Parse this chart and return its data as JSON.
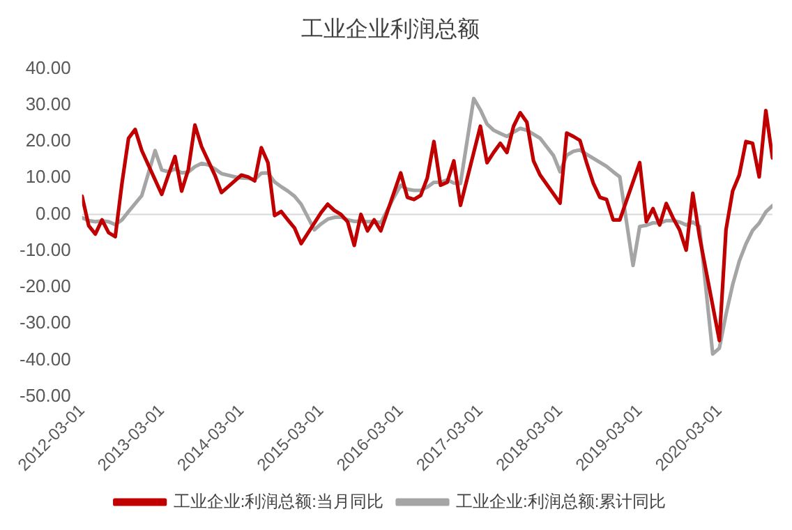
{
  "chart_data": {
    "type": "line",
    "title": "工业企业利润总额",
    "legend": "bottom",
    "marker": "none",
    "line_style": "solid",
    "grid": false,
    "ref_lines": [
      {
        "axis": "y",
        "value": 0,
        "color": "#d9d9d9"
      }
    ],
    "xlim": [
      "2012-03",
      "2020-11"
    ],
    "xticks": [
      "2012-03-01",
      "2013-03-01",
      "2014-03-01",
      "2015-03-01",
      "2016-03-01",
      "2017-03-01",
      "2018-03-01",
      "2019-03-01",
      "2020-03-01"
    ],
    "ylim": [
      -50,
      40
    ],
    "yticks": [
      {
        "value": -50,
        "label": "-50.00"
      },
      {
        "value": -40,
        "label": "-40.00"
      },
      {
        "value": -30,
        "label": "-30.00"
      },
      {
        "value": -20,
        "label": "-20.00"
      },
      {
        "value": -10,
        "label": "-10.00"
      },
      {
        "value": 0,
        "label": "0.00"
      },
      {
        "value": 10,
        "label": "10.00"
      },
      {
        "value": 20,
        "label": "20.00"
      },
      {
        "value": 30,
        "label": "30.00"
      },
      {
        "value": 40,
        "label": "40.00"
      }
    ],
    "series": [
      {
        "name": "工业企业:利润总额:当月同比",
        "color": "#c00000",
        "x": [
          "2012-03",
          "2012-04",
          "2012-05",
          "2012-06",
          "2012-07",
          "2012-08",
          "2012-09",
          "2012-10",
          "2012-11",
          "2012-12",
          "2013-03",
          "2013-04",
          "2013-05",
          "2013-06",
          "2013-07",
          "2013-08",
          "2013-09",
          "2013-10",
          "2013-11",
          "2013-12",
          "2014-03",
          "2014-04",
          "2014-05",
          "2014-06",
          "2014-07",
          "2014-08",
          "2014-09",
          "2014-10",
          "2014-11",
          "2014-12",
          "2015-03",
          "2015-04",
          "2015-05",
          "2015-06",
          "2015-07",
          "2015-08",
          "2015-09",
          "2015-10",
          "2015-11",
          "2015-12",
          "2016-03",
          "2016-04",
          "2016-05",
          "2016-06",
          "2016-07",
          "2016-08",
          "2016-09",
          "2016-10",
          "2016-11",
          "2016-12",
          "2017-03",
          "2017-04",
          "2017-05",
          "2017-06",
          "2017-07",
          "2017-08",
          "2017-09",
          "2017-10",
          "2017-11",
          "2017-12",
          "2018-03",
          "2018-04",
          "2018-05",
          "2018-06",
          "2018-07",
          "2018-08",
          "2018-09",
          "2018-10",
          "2018-11",
          "2018-12",
          "2019-03",
          "2019-04",
          "2019-05",
          "2019-06",
          "2019-07",
          "2019-08",
          "2019-09",
          "2019-10",
          "2019-11",
          "2019-12",
          "2020-03",
          "2020-04",
          "2020-05",
          "2020-06",
          "2020-07",
          "2020-08",
          "2020-09",
          "2020-10",
          "2020-11"
        ],
        "values": [
          5.0,
          -3.1,
          -5.4,
          -1.5,
          -5.0,
          -6.1,
          8.4,
          20.9,
          23.3,
          17.5,
          5.5,
          10.8,
          15.9,
          6.4,
          12.3,
          24.5,
          18.6,
          14.7,
          10.8,
          6.0,
          10.8,
          10.3,
          9.2,
          18.3,
          14.2,
          -0.3,
          0.8,
          -1.5,
          -3.7,
          -8.0,
          0.5,
          2.8,
          1.1,
          0.0,
          -2.0,
          -8.5,
          0.0,
          -4.5,
          -1.5,
          -4.5,
          11.4,
          4.7,
          4.1,
          5.2,
          10.0,
          20.0,
          8.0,
          8.8,
          14.7,
          2.5,
          24.2,
          14.2,
          17.0,
          19.5,
          17.0,
          24.2,
          27.9,
          25.3,
          14.7,
          10.8,
          3.1,
          22.3,
          21.4,
          20.3,
          14.2,
          8.6,
          4.7,
          4.1,
          -1.5,
          -1.5,
          14.2,
          -2.0,
          1.6,
          -2.9,
          3.0,
          -0.9,
          -4.2,
          -9.8,
          5.8,
          -6.0,
          -34.6,
          -4.2,
          6.4,
          10.8,
          20.0,
          19.5,
          10.3,
          28.5,
          15.5
        ]
      },
      {
        "name": "工业企业:利润总额:累计同比",
        "color": "#a5a5a5",
        "x": [
          "2012-03",
          "2012-04",
          "2012-05",
          "2012-06",
          "2012-07",
          "2012-08",
          "2012-09",
          "2012-10",
          "2012-11",
          "2012-12",
          "2013-02",
          "2013-03",
          "2013-04",
          "2013-05",
          "2013-06",
          "2013-07",
          "2013-08",
          "2013-09",
          "2013-10",
          "2013-11",
          "2013-12",
          "2014-02",
          "2014-03",
          "2014-04",
          "2014-05",
          "2014-06",
          "2014-07",
          "2014-08",
          "2014-09",
          "2014-10",
          "2014-11",
          "2014-12",
          "2015-02",
          "2015-03",
          "2015-04",
          "2015-05",
          "2015-06",
          "2015-07",
          "2015-08",
          "2015-09",
          "2015-10",
          "2015-11",
          "2015-12",
          "2016-02",
          "2016-03",
          "2016-04",
          "2016-05",
          "2016-06",
          "2016-07",
          "2016-08",
          "2016-09",
          "2016-10",
          "2016-11",
          "2016-12",
          "2017-02",
          "2017-03",
          "2017-04",
          "2017-05",
          "2017-06",
          "2017-07",
          "2017-08",
          "2017-09",
          "2017-10",
          "2017-11",
          "2017-12",
          "2018-02",
          "2018-03",
          "2018-04",
          "2018-05",
          "2018-06",
          "2018-07",
          "2018-08",
          "2018-09",
          "2018-10",
          "2018-11",
          "2018-12",
          "2019-02",
          "2019-03",
          "2019-04",
          "2019-05",
          "2019-06",
          "2019-07",
          "2019-08",
          "2019-09",
          "2019-10",
          "2019-11",
          "2019-12",
          "2020-02",
          "2020-03",
          "2020-04",
          "2020-05",
          "2020-06",
          "2020-07",
          "2020-08",
          "2020-09",
          "2020-10",
          "2020-11"
        ],
        "values": [
          -0.9,
          -1.7,
          -2.0,
          -1.8,
          -2.0,
          -2.8,
          -1.5,
          0.8,
          3.0,
          5.2,
          17.5,
          12.2,
          11.7,
          12.5,
          11.4,
          11.6,
          13.1,
          14.0,
          13.6,
          12.5,
          11.2,
          10.3,
          10.0,
          9.9,
          9.6,
          11.3,
          11.4,
          8.9,
          7.6,
          6.4,
          5.0,
          2.8,
          -4.2,
          -2.6,
          -1.3,
          -0.8,
          -0.7,
          -1.5,
          -1.9,
          -1.9,
          -2.0,
          -1.9,
          -2.3,
          4.8,
          8.0,
          6.9,
          6.6,
          6.6,
          7.5,
          8.8,
          8.8,
          9.5,
          8.6,
          8.5,
          31.8,
          28.7,
          24.8,
          23.1,
          22.2,
          21.4,
          22.6,
          23.6,
          23.1,
          22.0,
          20.9,
          16.2,
          11.7,
          16.2,
          17.3,
          17.7,
          16.5,
          15.4,
          14.3,
          13.2,
          11.7,
          10.3,
          -14.0,
          -3.3,
          -3.0,
          -2.3,
          -2.4,
          -1.7,
          -1.7,
          -2.1,
          -2.9,
          -2.1,
          -3.3,
          -38.3,
          -36.7,
          -27.4,
          -19.3,
          -12.8,
          -8.1,
          -4.4,
          -2.4,
          0.7,
          2.4
        ]
      }
    ]
  }
}
